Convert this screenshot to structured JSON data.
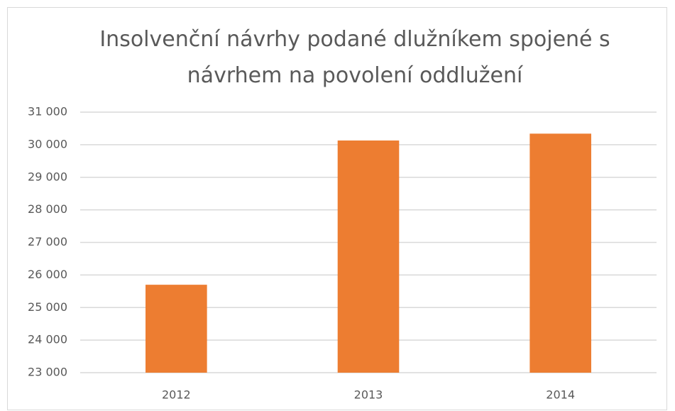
{
  "chart_data": {
    "type": "bar",
    "title": "Insolvenční návrhy podané dlužníkem spojené s návrhem na povolení oddlužení",
    "categories": [
      "2012",
      "2013",
      "2014"
    ],
    "values": [
      25700,
      30130,
      30340
    ],
    "color": "#ed7d31",
    "ylim": [
      23000,
      31000
    ],
    "yticks": [
      {
        "value": 23000,
        "label": "23 000"
      },
      {
        "value": 24000,
        "label": "24 000"
      },
      {
        "value": 25000,
        "label": "25 000"
      },
      {
        "value": 26000,
        "label": "26 000"
      },
      {
        "value": 27000,
        "label": "27 000"
      },
      {
        "value": 28000,
        "label": "28 000"
      },
      {
        "value": 29000,
        "label": "29 000"
      },
      {
        "value": 30000,
        "label": "30 000"
      },
      {
        "value": 31000,
        "label": "31 000"
      }
    ],
    "grid": true
  }
}
